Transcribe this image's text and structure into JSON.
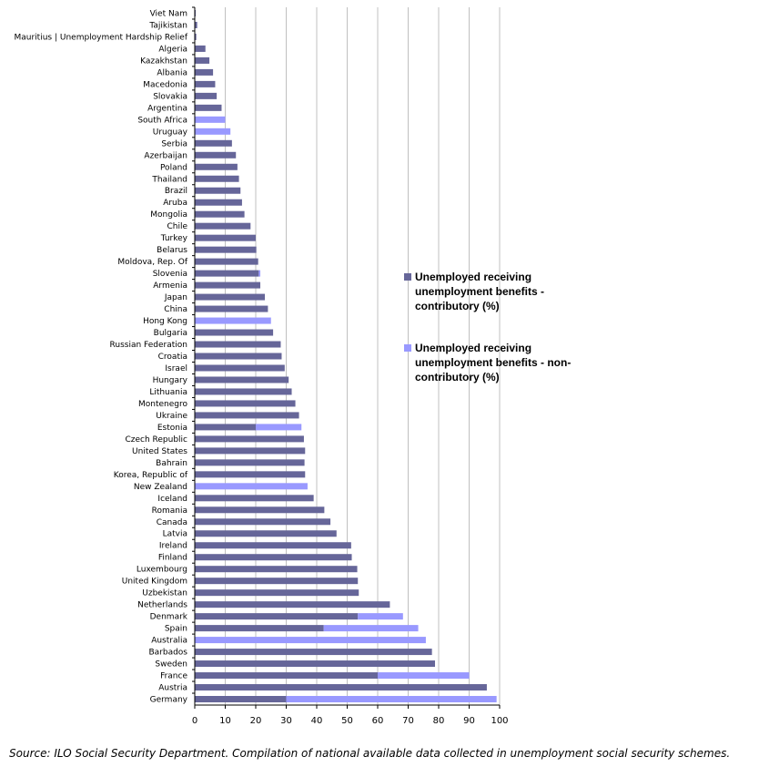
{
  "colors": {
    "contributory": "#666699",
    "non_contributory": "#9999ff",
    "grid": "#c0c0c0",
    "axis": "#000000"
  },
  "chart_data": {
    "type": "bar",
    "orientation": "horizontal",
    "stacked": true,
    "title": "",
    "xlabel": "",
    "ylabel": "",
    "xlim": [
      0,
      100
    ],
    "x_ticks": [
      0,
      10,
      20,
      30,
      40,
      50,
      60,
      70,
      80,
      90,
      100
    ],
    "grid": true,
    "legend_position": "right",
    "categories": [
      "Viet Nam",
      "Tajikistan",
      "Mauritius | Unemployment Hardship Relief",
      "Algeria",
      "Kazakhstan",
      "Albania",
      "Macedonia",
      "Slovakia",
      "Argentina",
      "South Africa",
      "Uruguay",
      "Serbia",
      "Azerbaijan",
      "Poland",
      "Thailand",
      "Brazil",
      "Aruba",
      "Mongolia",
      "Chile",
      "Turkey",
      "Belarus",
      "Moldova, Rep. Of",
      "Slovenia",
      "Armenia",
      "Japan",
      "China",
      "Hong Kong",
      "Bulgaria",
      "Russian Federation",
      "Croatia",
      "Israel",
      "Hungary",
      "Lithuania",
      "Montenegro",
      "Ukraine",
      "Estonia",
      "Czech Republic",
      "United States",
      "Bahrain",
      "Korea, Republic of",
      "New Zealand",
      "Iceland",
      "Romania",
      "Canada",
      "Latvia",
      "Ireland",
      "Finland",
      "Luxembourg",
      "United Kingdom",
      "Uzbekistan",
      "Netherlands",
      "Denmark",
      "Spain",
      "Australia",
      "Barbados",
      "Sweden",
      "France",
      "Austria",
      "Germany"
    ],
    "series": [
      {
        "name": "Unemployed receiving unemployment benefits - contributory (%)",
        "values": [
          0.3,
          0.8,
          0.5,
          3.5,
          4.8,
          6,
          6.7,
          7.2,
          8.8,
          0,
          0,
          12.2,
          13.5,
          14,
          14.5,
          15,
          15.5,
          16.3,
          18.3,
          20,
          20.2,
          20.8,
          21,
          21.5,
          23,
          24,
          0,
          25.7,
          28.2,
          28.5,
          29.5,
          30.8,
          31.8,
          33,
          34.2,
          20,
          35.8,
          36.2,
          36,
          36.2,
          0,
          39,
          42.5,
          44.5,
          46.5,
          51.3,
          51.5,
          53.3,
          53.5,
          53.8,
          64,
          53.5,
          42.3,
          0,
          77.8,
          78.8,
          60,
          95.8,
          30
        ]
      },
      {
        "name": "Unemployed receiving unemployment benefits - non-contributory (%)",
        "values": [
          0,
          0,
          0,
          0,
          0,
          0,
          0,
          0,
          0,
          10,
          11.7,
          0,
          0,
          0,
          0,
          0,
          0,
          0,
          0,
          0,
          0,
          0,
          0.5,
          0,
          0,
          0,
          25,
          0,
          0,
          0,
          0,
          0,
          0,
          0,
          0,
          15,
          0,
          0,
          0,
          0,
          37,
          0,
          0,
          0,
          0,
          0,
          0,
          0,
          0,
          0,
          0,
          14.8,
          31,
          75.8,
          0,
          0,
          30,
          0,
          69
        ]
      }
    ],
    "legend": [
      "Unemployed receiving unemployment benefits - contributory (%)",
      "Unemployed receiving unemployment benefits - non-contributory (%)"
    ]
  },
  "legend_labels": {
    "contributory": "Unemployed receiving unemployment benefits - contributory (%)",
    "non_contributory": "Unemployed receiving unemployment benefits - non-contributory (%)"
  },
  "source_note": "Source: ILO Social Security Department. Compilation of national available data collected in unemployment social security schemes."
}
